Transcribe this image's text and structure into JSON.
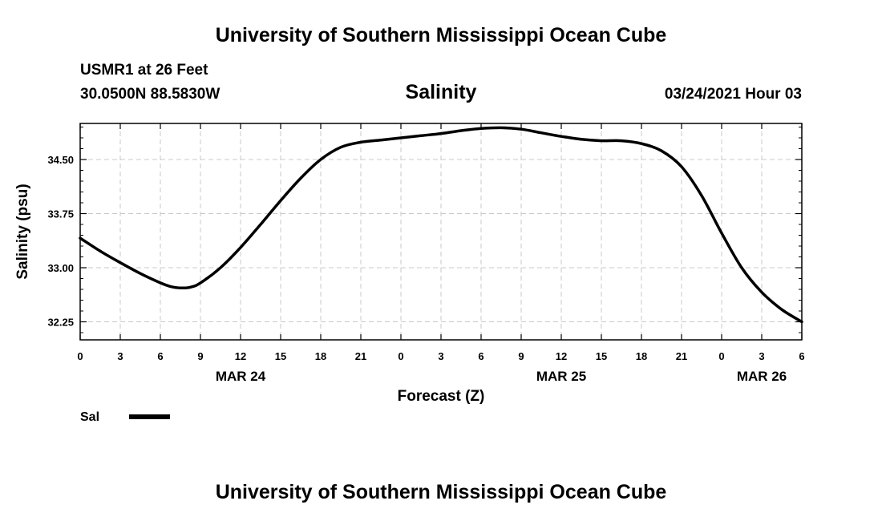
{
  "header": {
    "top_title": "University of Southern Mississippi Ocean Cube",
    "station_name": "USMR1 at 26 Feet",
    "station_coords": "30.0500N 88.5830W",
    "forecast_time": "03/24/2021 Hour 03"
  },
  "footer": {
    "bottom_title": "University of Southern Mississippi Ocean Cube"
  },
  "colors": {
    "line": "#000000",
    "grid": "#c8c8c8",
    "frame": "#000000"
  },
  "chart_data": {
    "type": "line",
    "title": "Salinity",
    "xlabel": "Forecast (Z)",
    "ylabel": "Salinity (psu)",
    "x_unit": "hours since MAR 24 00Z",
    "xlim": [
      0,
      54
    ],
    "ylim": [
      32.0,
      35.0
    ],
    "grid": true,
    "x_ticks": [
      0,
      3,
      6,
      9,
      12,
      15,
      18,
      21,
      24,
      27,
      30,
      33,
      36,
      39,
      42,
      45,
      48,
      51,
      54
    ],
    "x_tick_labels": [
      "0",
      "3",
      "6",
      "9",
      "12",
      "15",
      "18",
      "21",
      "0",
      "3",
      "6",
      "9",
      "12",
      "15",
      "18",
      "21",
      "0",
      "3",
      "6"
    ],
    "y_ticks": [
      32.25,
      33.0,
      33.75,
      34.5
    ],
    "y_tick_labels": [
      "32.25",
      "33.00",
      "33.75",
      "34.50"
    ],
    "y_minor_ticks": [
      32.1,
      32.4,
      32.55,
      32.7,
      32.85,
      33.15,
      33.3,
      33.45,
      33.6,
      33.9,
      34.05,
      34.2,
      34.35,
      34.65,
      34.8,
      34.95
    ],
    "date_labels": [
      {
        "x": 12,
        "label": "MAR 24"
      },
      {
        "x": 36,
        "label": "MAR 25"
      },
      {
        "x": 51,
        "label": "MAR 26"
      }
    ],
    "legend": {
      "position": "bottom-left",
      "entries": [
        {
          "name": "Sal"
        }
      ]
    },
    "series": [
      {
        "name": "Sal",
        "x": [
          0,
          1.5,
          3,
          4.5,
          6,
          6.75,
          7.5,
          8.25,
          9,
          10.5,
          12,
          13.5,
          15,
          16.5,
          18,
          19.5,
          21,
          22.5,
          24,
          25.5,
          27,
          28.5,
          30,
          31.5,
          33,
          34.5,
          36,
          37.5,
          39,
          40.5,
          42,
          43.5,
          45,
          46.5,
          48,
          49.5,
          51,
          52.5,
          54
        ],
        "values": [
          33.41,
          33.23,
          33.07,
          32.92,
          32.79,
          32.74,
          32.72,
          32.73,
          32.79,
          33.0,
          33.28,
          33.6,
          33.93,
          34.24,
          34.5,
          34.67,
          34.74,
          34.77,
          34.8,
          34.83,
          34.86,
          34.9,
          34.93,
          34.94,
          34.92,
          34.87,
          34.82,
          34.78,
          34.76,
          34.76,
          34.72,
          34.62,
          34.4,
          34.0,
          33.48,
          33.0,
          32.66,
          32.42,
          32.25
        ]
      }
    ]
  }
}
